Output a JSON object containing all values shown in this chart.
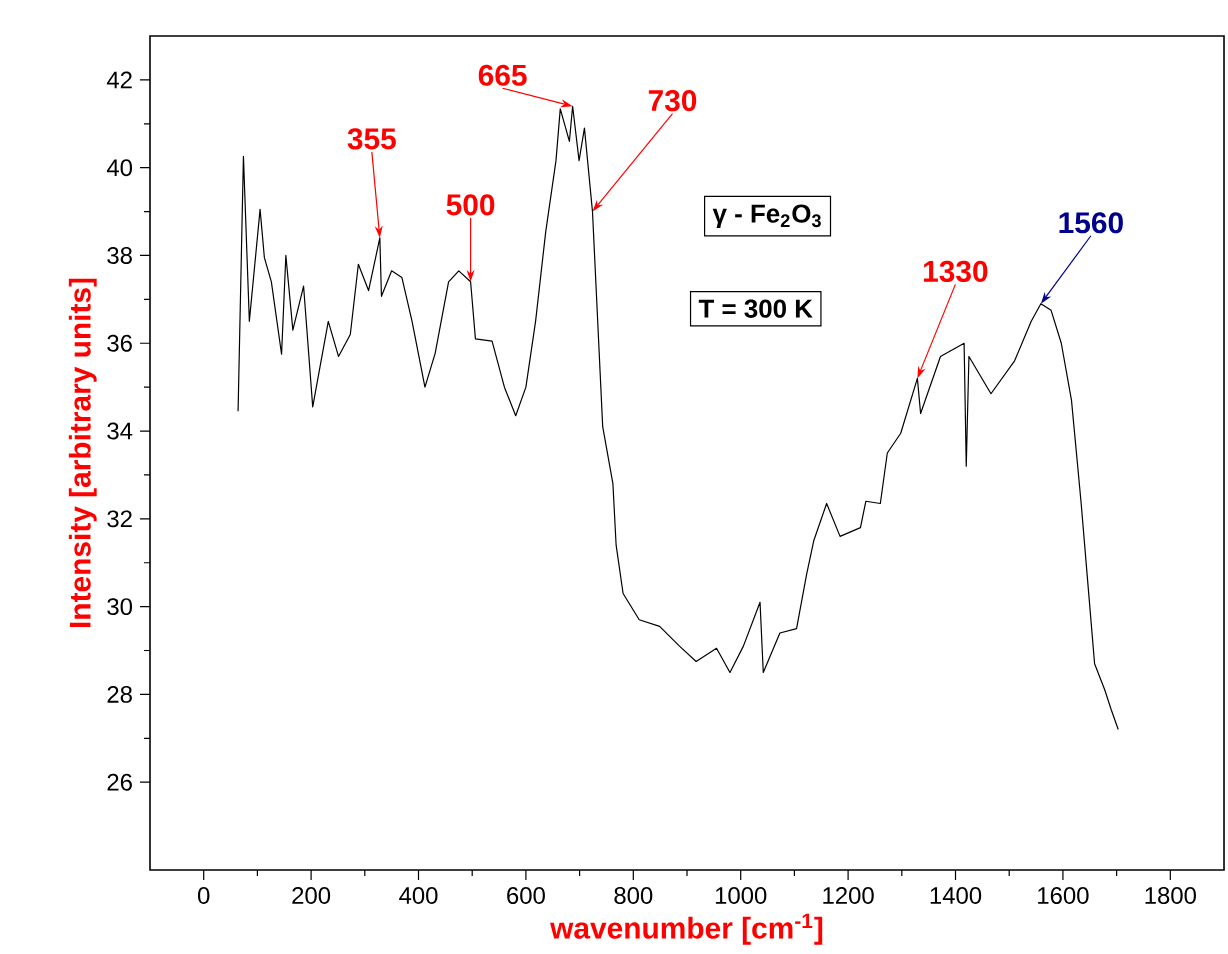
{
  "chart_data": {
    "type": "line",
    "xlabel": "wavenumber [cm$^{-1}$]",
    "ylabel": "Intensity [arbitrary units]",
    "x": [
      64,
      74,
      85,
      105,
      113,
      126,
      145,
      153,
      166,
      186,
      203,
      232,
      251,
      273,
      288,
      307,
      328,
      331,
      350,
      369,
      388,
      412,
      431,
      456,
      475,
      497,
      506,
      537,
      560,
      581,
      600,
      618,
      637,
      656,
      664,
      681,
      687,
      699,
      709,
      724,
      743,
      762,
      768,
      781,
      811,
      849,
      886,
      917,
      955,
      980,
      1005,
      1036,
      1042,
      1073,
      1104,
      1123,
      1136,
      1160,
      1185,
      1223,
      1233,
      1260,
      1273,
      1298,
      1329,
      1335,
      1372,
      1416,
      1420,
      1425,
      1466,
      1510,
      1541,
      1559,
      1578,
      1597,
      1616,
      1634,
      1647,
      1659,
      1678,
      1690,
      1703
    ],
    "series": [
      {
        "color": "#000000",
        "values": [
          34.45,
          40.26,
          36.5,
          39.05,
          37.95,
          37.4,
          35.75,
          38.0,
          36.3,
          37.3,
          34.55,
          36.5,
          35.7,
          36.2,
          37.8,
          37.2,
          38.4,
          37.07,
          37.65,
          37.5,
          36.5,
          35.0,
          35.77,
          37.4,
          37.65,
          37.4,
          36.1,
          36.05,
          35.0,
          34.35,
          35.0,
          36.5,
          38.55,
          40.16,
          41.34,
          40.6,
          41.4,
          40.16,
          40.9,
          39.0,
          34.1,
          32.8,
          31.4,
          30.3,
          29.7,
          29.55,
          29.1,
          28.75,
          29.05,
          28.5,
          29.1,
          30.1,
          28.5,
          29.4,
          29.5,
          30.75,
          31.5,
          32.35,
          31.6,
          31.8,
          32.4,
          32.35,
          33.5,
          33.95,
          35.2,
          34.4,
          35.7,
          36.0,
          33.2,
          35.7,
          34.85,
          35.6,
          36.5,
          36.9,
          36.75,
          36.0,
          34.7,
          32.35,
          30.45,
          28.7,
          28.1,
          27.65,
          27.2
        ]
      }
    ],
    "xlim": [
      -100,
      1900
    ],
    "xticks": [
      0,
      200,
      400,
      600,
      800,
      1000,
      1200,
      1400,
      1600,
      1800
    ],
    "ylim": [
      24,
      43
    ],
    "yticks": [
      26,
      28,
      30,
      32,
      34,
      36,
      38,
      40,
      42
    ],
    "grid": false,
    "marker": "none",
    "line_style": "solid",
    "annotations": [
      {
        "text": "355",
        "x": 328,
        "y": 38.4
      },
      {
        "text": "500",
        "x": 497,
        "y": 37.4
      },
      {
        "text": "665",
        "x": 687,
        "y": 41.4
      },
      {
        "text": "730",
        "x": 724,
        "y": 39.0
      },
      {
        "text": "1330",
        "x": 1329,
        "y": 35.2
      },
      {
        "text": "1560",
        "x": 1559,
        "y": 36.9
      },
      "γ - Fe$_{2}$O$_{3}$",
      "T = 300 K"
    ]
  }
}
